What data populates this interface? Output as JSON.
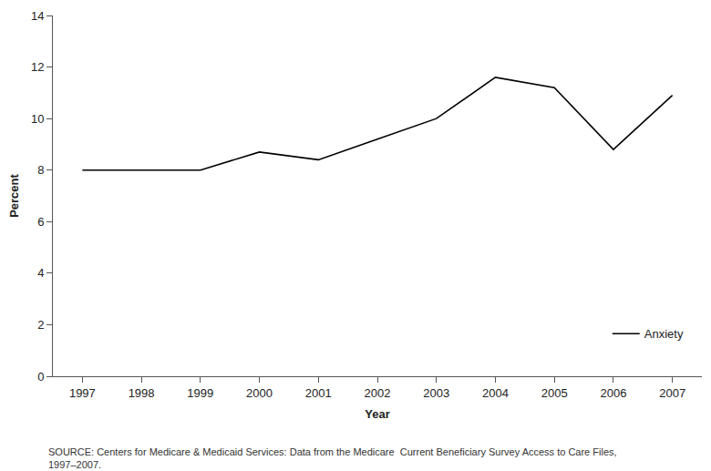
{
  "chart_data": {
    "type": "line",
    "x_label": "Year",
    "y_label": "Percent",
    "x": [
      1997,
      1998,
      1999,
      2000,
      2001,
      2002,
      2003,
      2004,
      2005,
      2006,
      2007
    ],
    "series": [
      {
        "name": "Anxiety",
        "color": "#000000",
        "values": [
          8.0,
          8.0,
          8.0,
          8.7,
          8.4,
          9.2,
          10.0,
          11.6,
          11.2,
          8.8,
          10.9
        ]
      }
    ],
    "xlim": [
      1996.5,
      2007.5
    ],
    "xticks": [
      1997,
      1998,
      1999,
      2000,
      2001,
      2002,
      2003,
      2004,
      2005,
      2006,
      2007
    ],
    "ylim": [
      0,
      14
    ],
    "yticks": [
      0,
      2,
      4,
      6,
      8,
      10,
      12,
      14
    ],
    "grid": false,
    "legend": "lower right",
    "annotations": [
      "SOURCE: Centers for Medicare & Medicaid Services: Data from the Medicare  Current Beneficiary Survey Access to Care Files,",
      "1997–2007."
    ]
  }
}
